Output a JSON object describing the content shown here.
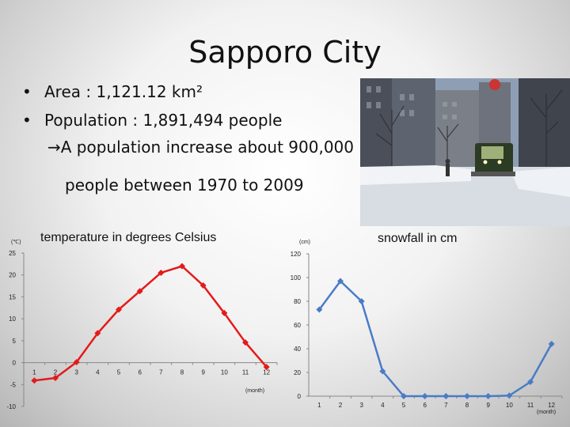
{
  "slide": {
    "title": "Sapporo City",
    "bullets": [
      "Area : 1,121.12 km²",
      "Population : 1,891,494 people"
    ],
    "sub_line1": "→A population increase about 900,000",
    "sub_line2": "people between 1970 to 2009"
  },
  "photo": {
    "icon": "snowy-street-photo"
  },
  "chart_data": [
    {
      "type": "line",
      "title": "temperature in degrees Celsius",
      "unit_label": "(℃)",
      "xlabel": "(month)",
      "categories": [
        "1",
        "2",
        "3",
        "4",
        "5",
        "6",
        "7",
        "8",
        "9",
        "10",
        "11",
        "12"
      ],
      "values": [
        -4.1,
        -3.5,
        0.1,
        6.7,
        12.1,
        16.3,
        20.5,
        22.0,
        17.6,
        11.3,
        4.6,
        -1.0
      ],
      "ylim": [
        -10,
        25
      ],
      "yticks": [
        25,
        20,
        15,
        10,
        5,
        0,
        -5,
        -10
      ],
      "color": "#e41a1a",
      "marker": "diamond",
      "grid": false
    },
    {
      "type": "line",
      "title": "snowfall in cm",
      "unit_label": "(cm)",
      "xlabel": "(month)",
      "categories": [
        "1",
        "2",
        "3",
        "4",
        "5",
        "6",
        "7",
        "8",
        "9",
        "10",
        "11",
        "12"
      ],
      "values": [
        73,
        97,
        80,
        21,
        0,
        0,
        0,
        0,
        0,
        0.5,
        12,
        44
      ],
      "ylim": [
        0,
        120
      ],
      "yticks": [
        120,
        100,
        80,
        60,
        40,
        20,
        0
      ],
      "color": "#4a7cc6",
      "marker": "diamond",
      "grid": false
    }
  ]
}
